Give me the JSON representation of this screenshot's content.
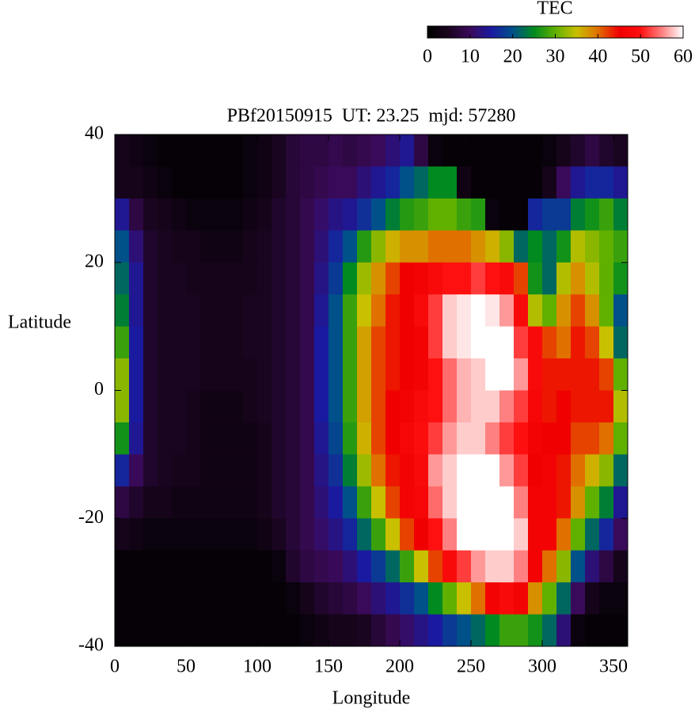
{
  "chart_data": {
    "type": "heatmap",
    "title": "PBf20150915  UT: 23.25  mjd: 57280",
    "x_label": "Longitude",
    "y_label": "Latitude",
    "colorbar_label": "TEC",
    "xlim": [
      0,
      360
    ],
    "xticks": [
      0,
      50,
      100,
      150,
      200,
      250,
      300,
      350
    ],
    "ylim": [
      -40,
      40
    ],
    "yticks": [
      -40,
      -20,
      0,
      20,
      40
    ],
    "zlim": [
      0,
      60
    ],
    "zticks": [
      0,
      10,
      20,
      30,
      40,
      50,
      60
    ],
    "colors": [
      "#000000",
      "#1a0520",
      "#3a0a5a",
      "#1a1aa0",
      "#00508a",
      "#008a20",
      "#60b000",
      "#c8c000",
      "#e07000",
      "#f00000",
      "#ff1010",
      "#ff8080",
      "#ffffff"
    ],
    "x": [
      5,
      15,
      25,
      35,
      45,
      55,
      65,
      75,
      85,
      95,
      105,
      115,
      125,
      135,
      145,
      155,
      165,
      175,
      185,
      195,
      205,
      215,
      225,
      235,
      245,
      255,
      265,
      275,
      285,
      295,
      305,
      315,
      325,
      335,
      345,
      355
    ],
    "y": [
      37.5,
      32.5,
      27.5,
      22.5,
      17.5,
      12.5,
      7.5,
      2.5,
      -2.5,
      -7.5,
      -12.5,
      -17.5,
      -22.5,
      -27.5,
      -32.5,
      -37.5
    ],
    "values": [
      [
        4,
        4,
        14,
        20,
        22,
        24,
        28,
        32,
        32,
        26,
        16,
        8,
        4,
        1,
        1,
        1
      ],
      [
        3,
        4,
        8,
        12,
        14,
        14,
        15,
        15,
        15,
        14,
        10,
        6,
        3,
        1,
        1,
        1
      ],
      [
        2,
        3,
        5,
        6,
        6,
        6,
        6,
        6,
        6,
        6,
        6,
        4,
        2,
        1,
        1,
        1
      ],
      [
        1,
        2,
        4,
        5,
        5,
        5,
        5,
        5,
        5,
        5,
        5,
        4,
        2,
        1,
        1,
        1
      ],
      [
        1,
        1,
        3,
        4,
        5,
        5,
        5,
        5,
        5,
        5,
        4,
        3,
        2,
        1,
        1,
        1
      ],
      [
        1,
        1,
        2,
        4,
        4,
        5,
        5,
        5,
        4,
        4,
        4,
        3,
        2,
        1,
        1,
        1
      ],
      [
        1,
        1,
        2,
        3,
        4,
        4,
        4,
        4,
        3,
        3,
        3,
        3,
        2,
        1,
        1,
        1
      ],
      [
        1,
        1,
        2,
        3,
        4,
        4,
        4,
        4,
        3,
        3,
        3,
        3,
        2,
        1,
        1,
        1
      ],
      [
        1,
        1,
        2,
        3,
        4,
        4,
        4,
        4,
        3,
        3,
        3,
        3,
        2,
        1,
        1,
        1
      ],
      [
        2,
        2,
        3,
        4,
        4,
        5,
        5,
        4,
        4,
        3,
        3,
        3,
        2,
        1,
        1,
        1
      ],
      [
        3,
        3,
        4,
        5,
        5,
        5,
        5,
        5,
        5,
        4,
        4,
        4,
        3,
        1,
        1,
        1
      ],
      [
        5,
        5,
        6,
        6,
        6,
        6,
        6,
        6,
        6,
        6,
        6,
        6,
        5,
        2,
        1,
        1
      ],
      [
        7,
        7,
        7,
        7,
        7,
        7,
        7,
        7,
        7,
        7,
        7,
        7,
        7,
        6,
        2,
        1
      ],
      [
        8,
        8,
        9,
        9,
        9,
        9,
        9,
        9,
        9,
        9,
        9,
        9,
        9,
        8,
        4,
        2
      ],
      [
        8,
        9,
        11,
        12,
        13,
        14,
        15,
        15,
        15,
        14,
        13,
        12,
        11,
        9,
        6,
        3
      ],
      [
        9,
        10,
        13,
        16,
        18,
        20,
        20,
        20,
        20,
        19,
        17,
        15,
        13,
        10,
        7,
        4
      ],
      [
        8,
        10,
        14,
        20,
        25,
        28,
        28,
        28,
        28,
        27,
        24,
        20,
        16,
        12,
        8,
        4
      ],
      [
        9,
        12,
        17,
        27,
        33,
        35,
        37,
        37,
        37,
        36,
        33,
        28,
        22,
        15,
        10,
        5
      ],
      [
        10,
        14,
        20,
        32,
        38,
        40,
        42,
        42,
        42,
        42,
        40,
        35,
        28,
        18,
        12,
        7
      ],
      [
        12,
        16,
        24,
        36,
        42,
        44,
        44,
        44,
        45,
        45,
        44,
        42,
        35,
        22,
        14,
        9
      ],
      [
        14,
        20,
        27,
        38,
        45,
        45,
        45,
        45,
        46,
        47,
        46,
        46,
        42,
        28,
        17,
        11
      ],
      [
        8,
        22,
        28,
        38,
        46,
        48,
        46,
        46,
        48,
        49,
        48,
        47,
        45,
        35,
        20,
        13
      ],
      [
        2,
        25,
        30,
        40,
        48,
        52,
        52,
        50,
        50,
        52,
        56,
        54,
        50,
        42,
        25,
        15
      ],
      [
        1,
        25,
        30,
        40,
        50,
        58,
        58,
        54,
        54,
        56,
        58,
        58,
        55,
        48,
        30,
        18
      ],
      [
        1,
        3,
        28,
        40,
        50,
        59,
        59,
        57,
        57,
        58,
        60,
        60,
        60,
        52,
        35,
        20
      ],
      [
        1,
        1,
        27,
        38,
        52,
        60,
        60,
        58,
        58,
        58,
        60,
        60,
        60,
        56,
        40,
        22
      ],
      [
        1,
        1,
        2,
        36,
        50,
        59,
        60,
        60,
        58,
        55,
        60,
        60,
        60,
        58,
        46,
        25
      ],
      [
        1,
        1,
        1,
        32,
        48,
        56,
        60,
        60,
        55,
        52,
        56,
        60,
        60,
        58,
        48,
        28
      ],
      [
        1,
        1,
        1,
        22,
        42,
        48,
        52,
        56,
        52,
        50,
        52,
        55,
        58,
        55,
        46,
        28
      ],
      [
        1,
        1,
        16,
        25,
        26,
        34,
        48,
        48,
        47,
        46,
        45,
        46,
        46,
        46,
        38,
        26
      ],
      [
        2,
        4,
        18,
        22,
        22,
        30,
        42,
        44,
        44,
        45,
        46,
        46,
        46,
        40,
        30,
        22
      ],
      [
        4,
        10,
        18,
        26,
        34,
        38,
        40,
        44,
        45,
        45,
        44,
        44,
        40,
        32,
        22,
        12
      ],
      [
        6,
        14,
        24,
        34,
        38,
        42,
        44,
        44,
        44,
        42,
        40,
        38,
        30,
        20,
        10,
        2
      ],
      [
        8,
        16,
        26,
        32,
        34,
        38,
        42,
        44,
        44,
        42,
        36,
        30,
        22,
        12,
        4,
        1
      ],
      [
        6,
        16,
        28,
        30,
        30,
        30,
        35,
        42,
        44,
        40,
        32,
        24,
        16,
        8,
        2,
        1
      ],
      [
        5,
        14,
        24,
        28,
        26,
        20,
        22,
        30,
        34,
        30,
        22,
        14,
        10,
        4,
        2,
        1
      ]
    ]
  }
}
